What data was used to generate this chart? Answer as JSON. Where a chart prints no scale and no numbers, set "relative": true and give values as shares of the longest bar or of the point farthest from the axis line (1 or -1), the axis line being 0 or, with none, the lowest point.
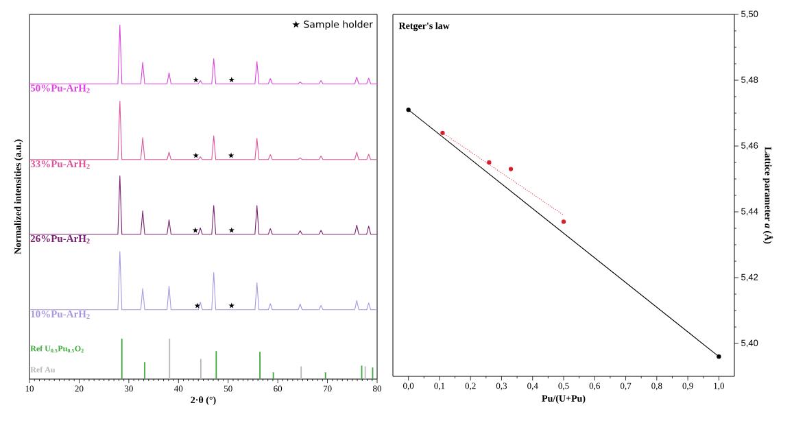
{
  "chart_data": [
    {
      "type": "line",
      "relative": true,
      "tick_labels": "x",
      "xlabel": "2·θ (°)",
      "ylabel": "Normalized intensities (a.u.)",
      "xlim": [
        10,
        80
      ],
      "xticks": [
        10,
        20,
        30,
        40,
        50,
        60,
        70,
        80
      ],
      "x": [
        10,
        27.8,
        28.2,
        28.6,
        32.4,
        32.8,
        33.2,
        37.7,
        38.1,
        38.5,
        44.0,
        44.4,
        44.8,
        46.7,
        47.1,
        47.5,
        55.4,
        55.8,
        56.2,
        58.1,
        58.5,
        58.9,
        64.1,
        64.5,
        64.9,
        68.3,
        68.7,
        69.1,
        75.5,
        75.9,
        76.3,
        77.9,
        78.3,
        78.7,
        80
      ],
      "series": [
        {
          "name": "50%Pu-ArH$_{2}$",
          "color": "#dd44dd",
          "values": [
            0.834,
            0.834,
            1.0,
            0.834,
            0.834,
            0.895,
            0.834,
            0.834,
            0.865,
            0.834,
            0.834,
            0.843,
            0.834,
            0.834,
            0.905,
            0.834,
            0.834,
            0.897,
            0.834,
            0.834,
            0.849,
            0.834,
            0.834,
            0.839,
            0.834,
            0.834,
            0.843,
            0.834,
            0.834,
            0.853,
            0.834,
            0.834,
            0.85,
            0.834,
            0.834
          ]
        },
        {
          "name": "33%Pu-ArH$_{2}$",
          "color": "#dd5599",
          "values": [
            0.62,
            0.62,
            0.785,
            0.62,
            0.62,
            0.682,
            0.62,
            0.62,
            0.641,
            0.62,
            0.62,
            0.628,
            0.62,
            0.62,
            0.687,
            0.62,
            0.62,
            0.68,
            0.62,
            0.62,
            0.634,
            0.62,
            0.62,
            0.625,
            0.62,
            0.62,
            0.63,
            0.62,
            0.62,
            0.641,
            0.62,
            0.62,
            0.635,
            0.62,
            0.62
          ]
        },
        {
          "name": "26%Pu-ArH$_{2}$",
          "color": "#7a2070",
          "values": [
            0.409,
            0.409,
            0.574,
            0.409,
            0.409,
            0.475,
            0.409,
            0.409,
            0.45,
            0.409,
            0.409,
            0.427,
            0.409,
            0.409,
            0.49,
            0.409,
            0.409,
            0.49,
            0.409,
            0.409,
            0.425,
            0.409,
            0.409,
            0.419,
            0.409,
            0.409,
            0.42,
            0.409,
            0.409,
            0.435,
            0.409,
            0.409,
            0.432,
            0.409,
            0.409
          ]
        },
        {
          "name": "10%Pu-ArH$_{2}$",
          "color": "#a898e0",
          "values": [
            0.196,
            0.196,
            0.36,
            0.196,
            0.196,
            0.256,
            0.196,
            0.196,
            0.262,
            0.196,
            0.196,
            0.217,
            0.196,
            0.196,
            0.301,
            0.196,
            0.196,
            0.272,
            0.196,
            0.196,
            0.213,
            0.196,
            0.196,
            0.212,
            0.196,
            0.196,
            0.208,
            0.196,
            0.196,
            0.222,
            0.196,
            0.196,
            0.215,
            0.196,
            0.196
          ]
        },
        {
          "name": "Ref U$_{0.5}$Pu$_{0.5}$O$_{2}$",
          "type": "bar",
          "color": "#3aa83a",
          "x": [
            28.6,
            33.2,
            47.6,
            56.4,
            59.1,
            69.6,
            76.9,
            79.1
          ],
          "values": [
            0.114,
            0.048,
            0.079,
            0.077,
            0.019,
            0.019,
            0.038,
            0.033
          ]
        },
        {
          "name": "Ref Au",
          "type": "bar",
          "color": "#b8b8b8",
          "x": [
            38.2,
            44.5,
            64.7,
            77.6
          ],
          "values": [
            0.114,
            0.057,
            0.036,
            0.036
          ]
        }
      ],
      "annotations": [
        "★ Sample holder",
        {
          "text": "★",
          "x": 43.5,
          "y": 0.834
        },
        {
          "text": "★",
          "x": 50.7,
          "y": 0.834
        },
        {
          "text": "★",
          "x": 43.5,
          "y": 0.62
        },
        {
          "text": "★",
          "x": 50.6,
          "y": 0.62
        },
        {
          "text": "★",
          "x": 43.4,
          "y": 0.409
        },
        {
          "text": "★",
          "x": 50.7,
          "y": 0.409
        },
        {
          "text": "★",
          "x": 43.8,
          "y": 0.196
        },
        {
          "text": "★",
          "x": 50.7,
          "y": 0.196
        }
      ]
    },
    {
      "type": "scatter",
      "title": "Retger's law",
      "xlabel": "Pu/(U+Pu)",
      "ylabel": "Lattice parameter *a* (Å)",
      "xlim": [
        -0.05,
        1.05
      ],
      "xticks": [
        {
          "value": 0.0,
          "label": "0,0"
        },
        {
          "value": 0.1,
          "label": "0,1"
        },
        {
          "value": 0.2,
          "label": "0,2"
        },
        {
          "value": 0.3,
          "label": "0,3"
        },
        {
          "value": 0.4,
          "label": "0,4"
        },
        {
          "value": 0.5,
          "label": "0,5"
        },
        {
          "value": 0.6,
          "label": "0,6"
        },
        {
          "value": 0.7,
          "label": "0,7"
        },
        {
          "value": 0.8,
          "label": "0,8"
        },
        {
          "value": 0.9,
          "label": "0,9"
        },
        {
          "value": 1.0,
          "label": "1,0"
        }
      ],
      "ylim": [
        5.39,
        5.5
      ],
      "yticks": [
        {
          "value": 5.4,
          "label": "5,40"
        },
        {
          "value": 5.42,
          "label": "5,42"
        },
        {
          "value": 5.44,
          "label": "5,44"
        },
        {
          "value": 5.46,
          "label": "5,46"
        },
        {
          "value": 5.48,
          "label": "5,48"
        },
        {
          "value": 5.5,
          "label": "5,50"
        }
      ],
      "series": [
        {
          "type": "line",
          "marker": "circle",
          "color": "#000000",
          "x": [
            0,
            1.0
          ],
          "values": [
            5.471,
            5.396
          ]
        },
        {
          "type": "line",
          "marker": "none",
          "line_style": "dotted",
          "color": "#e8333a",
          "x": [
            0.11,
            0.5
          ],
          "values": [
            5.464,
            5.439
          ]
        },
        {
          "type": "scatter",
          "marker": "circle",
          "color": "#d81e2c",
          "x": [
            0.11,
            0.26,
            0.33,
            0.5
          ],
          "values": [
            5.464,
            5.455,
            5.453,
            5.437
          ]
        }
      ]
    }
  ]
}
